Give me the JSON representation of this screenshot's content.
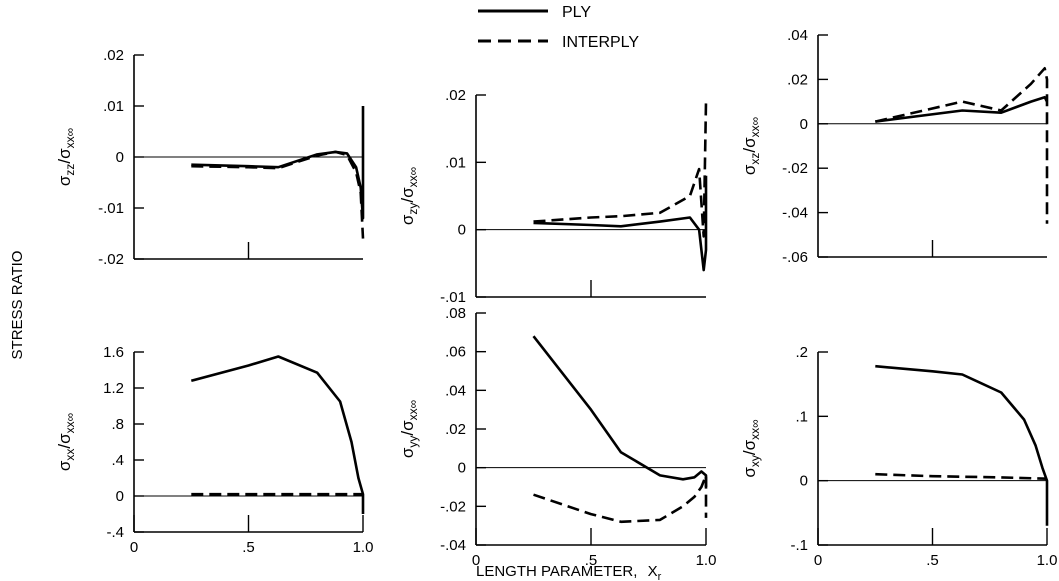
{
  "figure": {
    "shared_ylabel": "STRESS RATIO",
    "shared_xlabel_main": "LENGTH PARAMETER,",
    "shared_xlabel_symbol": "X",
    "shared_xlabel_sub": "r",
    "legend": [
      {
        "name": "PLY",
        "style": "solid"
      },
      {
        "name": "INTERPLY",
        "style": "dashed"
      }
    ],
    "line_color": "#000000"
  },
  "chart_data": [
    {
      "type": "line",
      "ylabel": {
        "sym": "σ",
        "sub": "zz",
        "den": "σ",
        "den_sub": "xx∞"
      },
      "xlim": [
        0,
        1.0
      ],
      "ylim": [
        -0.02,
        0.02
      ],
      "yticks": [
        -0.02,
        -0.01,
        0,
        0.01,
        0.02
      ],
      "ytick_labels": [
        "-.02",
        "-.01",
        "0",
        ".01",
        ".02"
      ],
      "xticks": [
        0.5
      ],
      "xtick_labels": [],
      "series": [
        {
          "name": "PLY",
          "x": [
            0.25,
            0.5,
            0.63,
            0.8,
            0.88,
            0.93,
            0.97,
            0.99,
            1.0,
            1.0
          ],
          "y": [
            -0.0015,
            -0.0018,
            -0.002,
            0.0005,
            0.001,
            0.0007,
            -0.002,
            -0.006,
            -0.012,
            0.01
          ]
        },
        {
          "name": "INTERPLY",
          "x": [
            0.25,
            0.5,
            0.63,
            0.8,
            0.88,
            0.93,
            0.97,
            0.99,
            1.0
          ],
          "y": [
            -0.0018,
            -0.002,
            -0.0022,
            0.0003,
            0.001,
            0.0004,
            -0.003,
            -0.007,
            -0.016
          ]
        }
      ]
    },
    {
      "type": "line",
      "ylabel": {
        "sym": "σ",
        "sub": "zy",
        "den": "σ",
        "den_sub": "xx∞"
      },
      "xlim": [
        0,
        1.0
      ],
      "ylim": [
        -0.01,
        0.02
      ],
      "yticks": [
        -0.01,
        0,
        0.01,
        0.02
      ],
      "ytick_labels": [
        "-.01",
        "0",
        ".01",
        ".02"
      ],
      "xticks": [
        0.5
      ],
      "xtick_labels": [],
      "series": [
        {
          "name": "PLY",
          "x": [
            0.25,
            0.5,
            0.63,
            0.8,
            0.93,
            0.97,
            0.99,
            1.0,
            1.0
          ],
          "y": [
            0.001,
            0.0007,
            0.0005,
            0.0012,
            0.0018,
            0.0,
            -0.006,
            -0.003,
            0.008
          ]
        },
        {
          "name": "INTERPLY",
          "x": [
            0.25,
            0.5,
            0.63,
            0.8,
            0.93,
            0.97,
            0.99,
            1.0
          ],
          "y": [
            0.0012,
            0.0018,
            0.002,
            0.0025,
            0.005,
            0.009,
            -0.001,
            0.019
          ]
        }
      ]
    },
    {
      "type": "line",
      "ylabel": {
        "sym": "σ",
        "sub": "xz",
        "den": "σ",
        "den_sub": "xx∞"
      },
      "xlim": [
        0,
        1.0
      ],
      "ylim": [
        -0.06,
        0.04
      ],
      "yticks": [
        -0.06,
        -0.04,
        -0.02,
        0,
        0.02,
        0.04
      ],
      "ytick_labels": [
        "-.06",
        "-.04",
        "-.02",
        "0",
        ".02",
        ".04"
      ],
      "xticks": [
        0.5
      ],
      "xtick_labels": [],
      "series": [
        {
          "name": "PLY",
          "x": [
            0.25,
            0.63,
            0.8,
            0.93,
            0.99,
            1.0
          ],
          "y": [
            0.001,
            0.006,
            0.005,
            0.01,
            0.012,
            0.01
          ]
        },
        {
          "name": "INTERPLY",
          "x": [
            0.25,
            0.63,
            0.8,
            0.93,
            0.99,
            1.0,
            1.0
          ],
          "y": [
            0.001,
            0.01,
            0.006,
            0.018,
            0.025,
            0.02,
            -0.045
          ]
        }
      ]
    },
    {
      "type": "line",
      "ylabel": {
        "sym": "σ",
        "sub": "xx",
        "den": "σ",
        "den_sub": "xx∞"
      },
      "xlim": [
        0,
        1.0
      ],
      "ylim": [
        -0.4,
        1.6
      ],
      "yticks": [
        -0.4,
        0,
        0.4,
        0.8,
        1.2,
        1.6
      ],
      "ytick_labels": [
        "-.4",
        "0",
        ".4",
        ".8",
        "1.2",
        "1.6"
      ],
      "xticks": [
        0,
        0.5,
        1.0
      ],
      "xtick_labels": [
        "0",
        ".5",
        "1.0"
      ],
      "series": [
        {
          "name": "PLY",
          "x": [
            0.25,
            0.5,
            0.63,
            0.8,
            0.9,
            0.95,
            0.98,
            1.0,
            1.0
          ],
          "y": [
            1.28,
            1.45,
            1.55,
            1.37,
            1.05,
            0.6,
            0.2,
            0.02,
            -0.2
          ]
        },
        {
          "name": "INTERPLY",
          "x": [
            0.25,
            0.5,
            0.8,
            1.0
          ],
          "y": [
            0.02,
            0.02,
            0.02,
            0.02
          ]
        }
      ]
    },
    {
      "type": "line",
      "ylabel": {
        "sym": "σ",
        "sub": "yy",
        "den": "σ",
        "den_sub": "xx∞"
      },
      "xlim": [
        0,
        1.0
      ],
      "ylim": [
        -0.04,
        0.08
      ],
      "yticks": [
        -0.04,
        -0.02,
        0,
        0.02,
        0.04,
        0.06,
        0.08
      ],
      "ytick_labels": [
        "-.04",
        "-.02",
        "0",
        ".02",
        ".04",
        ".06",
        ".08"
      ],
      "xticks": [
        0,
        0.5,
        1.0
      ],
      "xtick_labels": [
        "0",
        ".5",
        "1.0"
      ],
      "series": [
        {
          "name": "PLY",
          "x": [
            0.25,
            0.5,
            0.63,
            0.8,
            0.9,
            0.95,
            0.98,
            1.0,
            1.0
          ],
          "y": [
            0.068,
            0.03,
            0.008,
            -0.004,
            -0.006,
            -0.005,
            -0.002,
            -0.004,
            -0.01
          ]
        },
        {
          "name": "INTERPLY",
          "x": [
            0.25,
            0.5,
            0.63,
            0.8,
            0.9,
            0.95,
            0.98,
            1.0,
            1.0
          ],
          "y": [
            -0.014,
            -0.024,
            -0.028,
            -0.027,
            -0.02,
            -0.015,
            -0.01,
            -0.004,
            -0.026
          ]
        }
      ]
    },
    {
      "type": "line",
      "ylabel": {
        "sym": "σ",
        "sub": "xy",
        "den": "σ",
        "den_sub": "xx∞"
      },
      "xlim": [
        0,
        1.0
      ],
      "ylim": [
        -0.1,
        0.2
      ],
      "yticks": [
        -0.1,
        0,
        0.1,
        0.2
      ],
      "ytick_labels": [
        "-.1",
        "0",
        ".1",
        ".2"
      ],
      "xticks": [
        0,
        0.5,
        1.0
      ],
      "xtick_labels": [
        "0",
        ".5",
        "1.0"
      ],
      "series": [
        {
          "name": "PLY",
          "x": [
            0.25,
            0.5,
            0.63,
            0.8,
            0.9,
            0.95,
            0.98,
            1.0,
            1.0
          ],
          "y": [
            0.178,
            0.17,
            0.165,
            0.137,
            0.095,
            0.055,
            0.02,
            0.0,
            -0.07
          ]
        },
        {
          "name": "INTERPLY",
          "x": [
            0.25,
            0.5,
            0.8,
            1.0
          ],
          "y": [
            0.01,
            0.007,
            0.005,
            0.003
          ]
        }
      ]
    }
  ]
}
